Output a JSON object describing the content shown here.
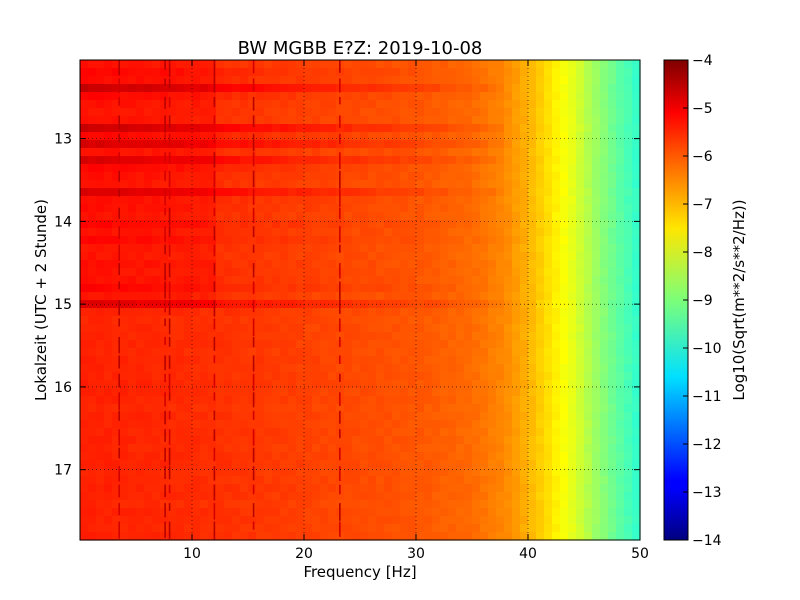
{
  "chart_data": {
    "type": "heatmap",
    "title": "BW MGBB E?Z: 2019-10-08",
    "xlabel": "Frequency [Hz]",
    "ylabel": "Lokalzeit (UTC + 2 Stunde)",
    "xlim": [
      0,
      50
    ],
    "ylim": [
      12.05,
      17.85
    ],
    "y_inverted": true,
    "x_ticks": [
      10,
      20,
      30,
      40,
      50
    ],
    "y_ticks": [
      13,
      14,
      15,
      16,
      17
    ],
    "grid": true,
    "colormap": "jet",
    "colorbar": {
      "label": "Log10(Sqrt(m**2/s**2/Hz))",
      "range": [
        -14,
        -4
      ],
      "ticks": [
        -4,
        -5,
        -6,
        -7,
        -8,
        -9,
        -10,
        -11,
        -12,
        -13,
        -14
      ]
    },
    "background_level": {
      "frequency_hz": [
        0,
        10,
        20,
        30,
        35,
        38,
        40,
        42,
        44,
        46,
        48,
        50
      ],
      "log10_value": [
        -5.6,
        -5.7,
        -5.9,
        -6.1,
        -6.3,
        -6.6,
        -7.0,
        -7.5,
        -8.0,
        -8.7,
        -9.3,
        -9.8
      ]
    },
    "vertical_lines_hz": [
      3.5,
      7.6,
      8.0,
      12.0,
      15.5,
      23.2
    ],
    "noisy_time_band": [
      12.05,
      15.0
    ],
    "title_text": "BW MGBB E?Z: 2019-10-08"
  }
}
